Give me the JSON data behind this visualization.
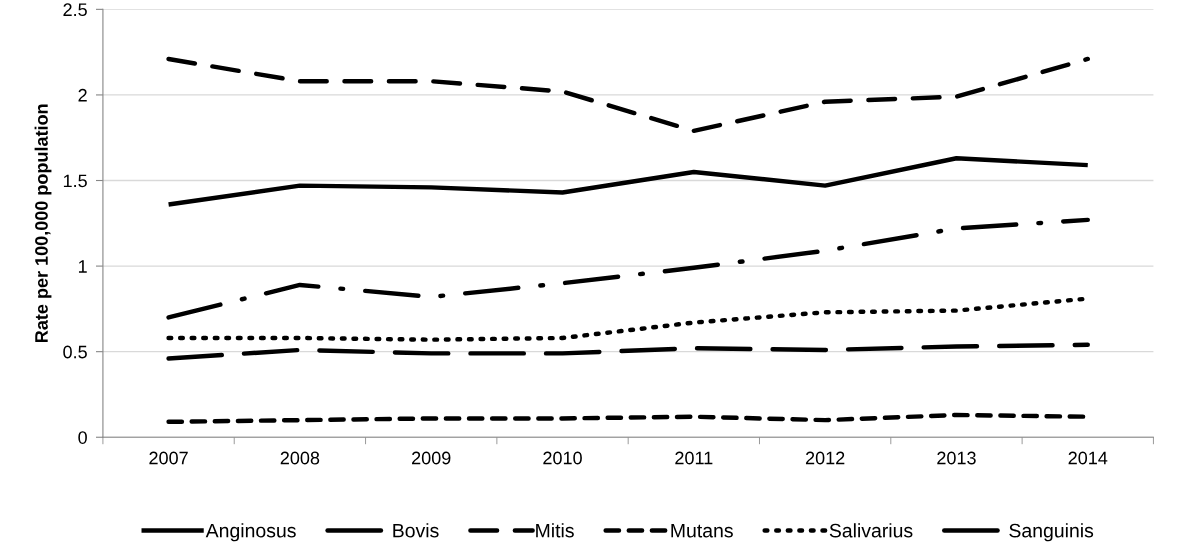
{
  "chart_data": {
    "type": "line",
    "ylabel": "Rate per 100,000 population",
    "categories": [
      "2007",
      "2008",
      "2009",
      "2010",
      "2011",
      "2012",
      "2013",
      "2014"
    ],
    "series": [
      {
        "name": "Anginosus",
        "color": "#000000",
        "line_style": "solid",
        "values": [
          1.36,
          1.47,
          1.46,
          1.43,
          1.55,
          1.47,
          1.63,
          1.59
        ]
      },
      {
        "name": "Bovis",
        "color": "#000000",
        "line_style": "longdash",
        "values": [
          0.46,
          0.51,
          0.49,
          0.49,
          0.52,
          0.51,
          0.53,
          0.54
        ]
      },
      {
        "name": "Mitis",
        "color": "#000000",
        "line_style": "dashed",
        "values": [
          2.21,
          2.08,
          2.08,
          2.02,
          1.79,
          1.96,
          1.99,
          2.21
        ]
      },
      {
        "name": "Mutans",
        "color": "#000000",
        "line_style": "shortdash",
        "values": [
          0.09,
          0.1,
          0.11,
          0.11,
          0.12,
          0.1,
          0.13,
          0.12
        ]
      },
      {
        "name": "Salivarius",
        "color": "#000000",
        "line_style": "dotted",
        "values": [
          0.58,
          0.58,
          0.57,
          0.58,
          0.67,
          0.73,
          0.74,
          0.81
        ]
      },
      {
        "name": "Sanguinis",
        "color": "#000000",
        "line_style": "dashdot",
        "values": [
          0.7,
          0.89,
          0.82,
          0.9,
          0.99,
          1.09,
          1.22,
          1.27
        ]
      }
    ],
    "ylim": [
      0,
      2.5
    ],
    "yticks": [
      0,
      0.5,
      1,
      1.5,
      2,
      2.5
    ],
    "grid": "y",
    "legend": "bottom",
    "marker": "none"
  }
}
